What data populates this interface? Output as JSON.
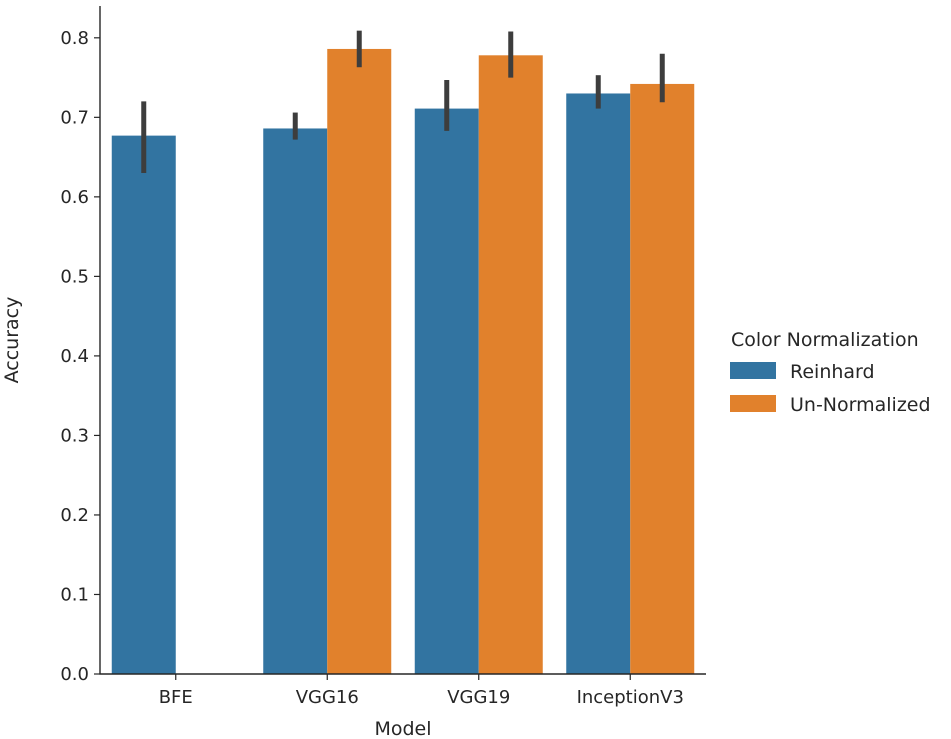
{
  "chart_data": {
    "type": "bar",
    "title": "",
    "xlabel": "Model",
    "ylabel": "Accuracy",
    "ylim": [
      0,
      0.84
    ],
    "yticks": [
      0.0,
      0.1,
      0.2,
      0.3,
      0.4,
      0.5,
      0.6,
      0.7,
      0.8
    ],
    "ytick_labels": [
      "0.0",
      "0.1",
      "0.2",
      "0.3",
      "0.4",
      "0.5",
      "0.6",
      "0.7",
      "0.8"
    ],
    "categories": [
      "BFE",
      "VGG16",
      "VGG19",
      "InceptionV3"
    ],
    "series": [
      {
        "name": "Reinhard",
        "color": "#3274a1",
        "values": [
          0.677,
          0.686,
          0.711,
          0.73
        ],
        "error_low": [
          0.63,
          0.672,
          0.683,
          0.711
        ],
        "error_high": [
          0.72,
          0.706,
          0.747,
          0.753
        ]
      },
      {
        "name": "Un-Normalized",
        "color": "#e1812c",
        "values": [
          null,
          0.786,
          0.778,
          0.742
        ],
        "error_low": [
          null,
          0.763,
          0.75,
          0.719
        ],
        "error_high": [
          null,
          0.809,
          0.808,
          0.78
        ]
      }
    ],
    "error_bar_color": "#3d3d3d",
    "grid": false,
    "legend": {
      "title": "Color Normalization",
      "placement": "right"
    }
  }
}
